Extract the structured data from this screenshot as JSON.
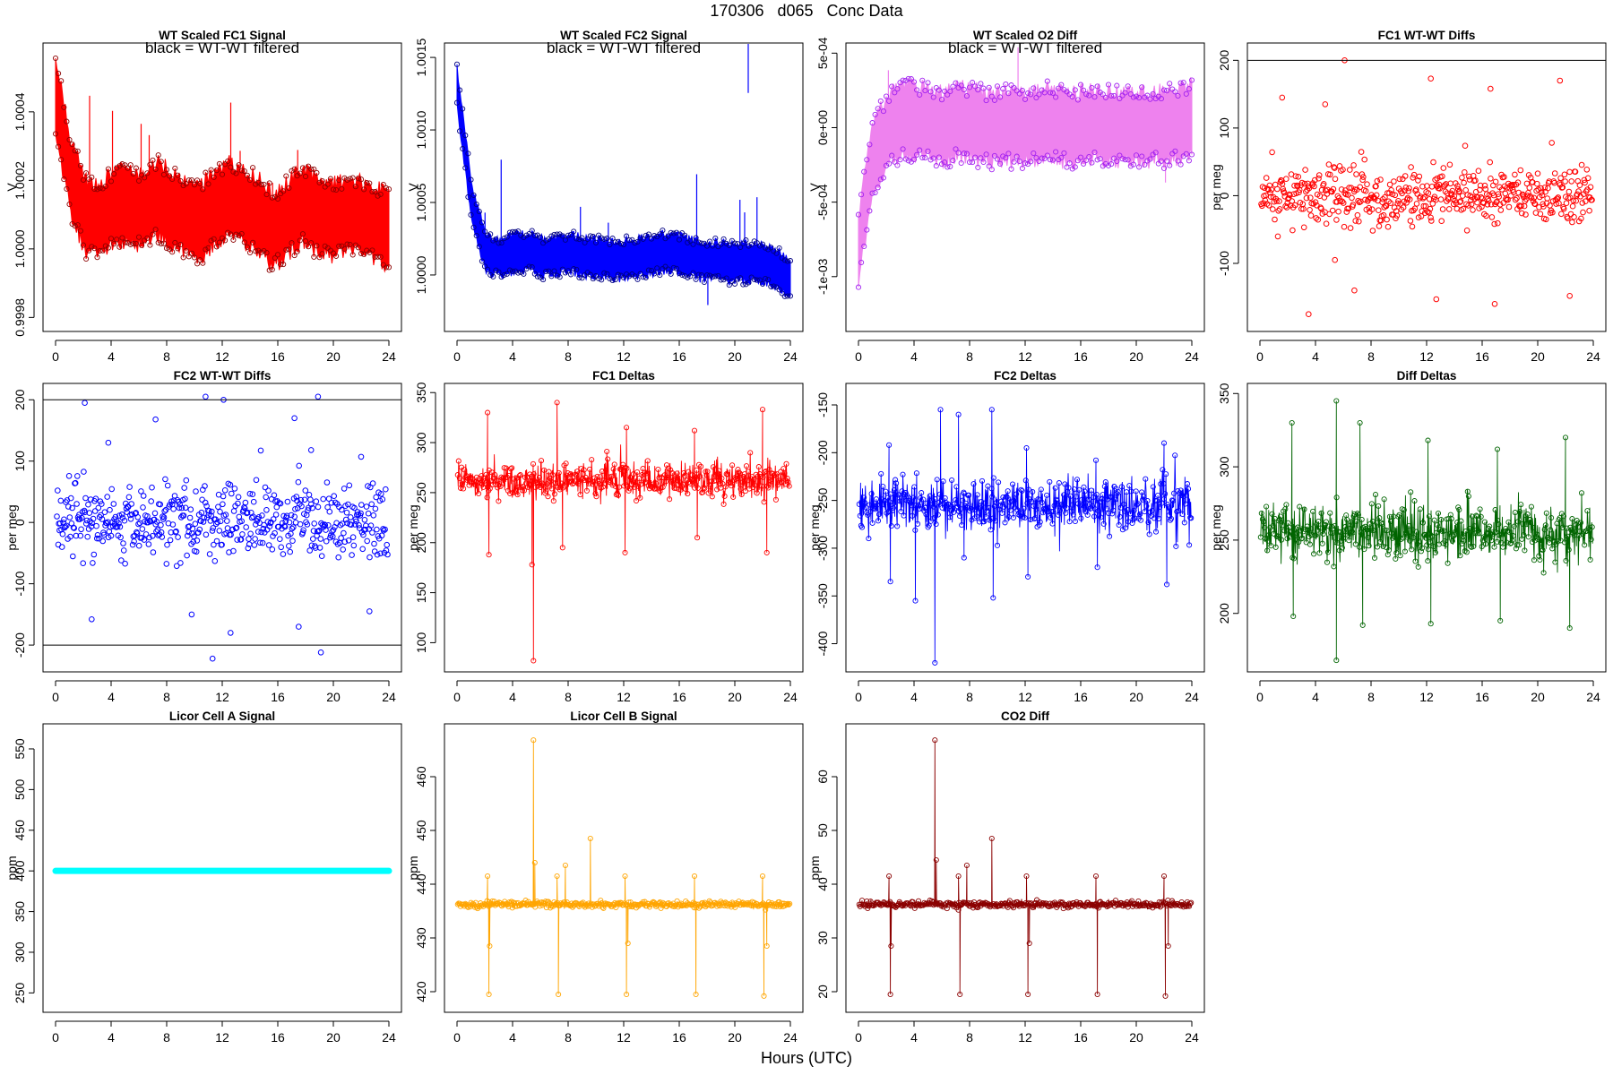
{
  "figure": {
    "title": "170306   d065   Conc Data",
    "xlabel": "Hours (UTC)"
  },
  "chart_data": [
    {
      "id": "fc1-signal",
      "type": "scatter",
      "title": "WT Scaled FC1 Signal",
      "annotation": "black = WT-WT filtered",
      "ylabel": "V",
      "xlim": [
        0,
        24
      ],
      "ylim": [
        0.99978,
        1.00058
      ],
      "xticks": [
        0,
        4,
        8,
        12,
        16,
        20,
        24
      ],
      "yticks": [
        0.9998,
        1.0,
        1.0002,
        1.0004
      ],
      "ytick_labels": [
        "0.9998",
        "1.0000",
        "1.0002",
        "1.0004"
      ],
      "color": "#ff0000",
      "style": "band",
      "marker_color": "#8b0000",
      "sample_y": [
        1.00045,
        1.00022,
        1.0001,
        1.00008,
        1.00012,
        1.00013,
        1.00011,
        1.00015,
        1.00012,
        1.0001,
        1.00008,
        1.00012,
        1.00015,
        1.00012,
        1.0001,
        1.00005,
        1.00009,
        1.00013,
        1.0001,
        1.00008,
        1.0001,
        1.00009,
        1.00008,
        1.00005
      ],
      "band_halfwidth": 0.0001
    },
    {
      "id": "fc2-signal",
      "type": "scatter",
      "title": "WT Scaled FC2 Signal",
      "annotation": "black = WT-WT filtered",
      "ylabel": "V",
      "xlim": [
        0,
        24
      ],
      "ylim": [
        0.99966,
        1.00155
      ],
      "xticks": [
        0,
        4,
        8,
        12,
        16,
        20,
        24
      ],
      "yticks": [
        1.0,
        1.0005,
        1.001,
        1.0015
      ],
      "ytick_labels": [
        "1.0000",
        "1.0005",
        "1.0010",
        "1.0015"
      ],
      "color": "#0000ff",
      "style": "band",
      "marker_color": "#000080",
      "sample_y": [
        1.0013,
        1.0005,
        1.00015,
        1.00012,
        1.00015,
        1.00016,
        1.00012,
        1.00014,
        1.00015,
        1.00012,
        1.00012,
        1.0001,
        1.00012,
        1.00013,
        1.00015,
        1.00016,
        1.00012,
        1.0001,
        1.0001,
        1.00008,
        1.00009,
        1.00008,
        1.00005,
        0.99998
      ],
      "band_halfwidth": 0.00012
    },
    {
      "id": "o2-diff",
      "type": "scatter",
      "title": "WT Scaled O2 Diff",
      "annotation": "black = WT-WT filtered",
      "ylabel": "V",
      "xlim": [
        0,
        24
      ],
      "ylim": [
        -0.00132,
        0.00052
      ],
      "xticks": [
        0,
        4,
        8,
        12,
        16,
        20,
        24
      ],
      "yticks": [
        -0.001,
        -0.0005,
        0,
        0.0005
      ],
      "ytick_labels": [
        "-1e-03",
        "-5e-04",
        "0e+00",
        "5e-04"
      ],
      "color": "#ee82ee",
      "style": "band",
      "marker_color": "#a020f0",
      "sample_y": [
        -0.0008,
        -0.0002,
        -2e-05,
        5e-05,
        4e-05,
        2e-05,
        0.0,
        5e-05,
        2e-05,
        0.0,
        1e-05,
        -1e-05,
        2e-05,
        3e-05,
        1e-05,
        0.0,
        2e-05,
        1e-05,
        0.0,
        2e-05,
        1e-05,
        1e-05,
        3e-05,
        5e-05
      ],
      "band_halfwidth": 0.00022
    },
    {
      "id": "fc1-wtwt",
      "type": "scatter",
      "title": "FC1 WT-WT Diffs",
      "ylabel": "per meg",
      "xlim": [
        0,
        24
      ],
      "ylim": [
        -190,
        215
      ],
      "xticks": [
        0,
        4,
        8,
        12,
        16,
        20,
        24
      ],
      "yticks": [
        -100,
        0,
        100,
        200
      ],
      "ytick_labels": [
        "-100",
        "0",
        "100",
        "200"
      ],
      "color": "#ff0000",
      "style": "points",
      "hlines": [
        200
      ],
      "outliers": [
        [
          1.6,
          145
        ],
        [
          3.5,
          -175
        ],
        [
          4.7,
          135
        ],
        [
          5.4,
          -95
        ],
        [
          6.1,
          200
        ],
        [
          6.8,
          -140
        ],
        [
          12.3,
          173
        ],
        [
          12.7,
          -153
        ],
        [
          16.6,
          158
        ],
        [
          16.9,
          -160
        ],
        [
          21.6,
          170
        ],
        [
          22.3,
          -148
        ]
      ],
      "noise_sd": 22,
      "n": 520,
      "bias": 0
    },
    {
      "id": "fc2-wtwt",
      "type": "scatter",
      "title": "FC2 WT-WT Diffs",
      "ylabel": "per meg",
      "xlim": [
        0,
        24
      ],
      "ylim": [
        -232,
        215
      ],
      "xticks": [
        0,
        4,
        8,
        12,
        16,
        20,
        24
      ],
      "yticks": [
        -200,
        -100,
        0,
        100,
        200
      ],
      "ytick_labels": [
        "-200",
        "-100",
        "0",
        "100",
        "200"
      ],
      "color": "#0000ff",
      "style": "points",
      "hlines": [
        200,
        -200
      ],
      "outliers": [
        [
          2.1,
          195
        ],
        [
          2.6,
          -158
        ],
        [
          3.8,
          130
        ],
        [
          7.2,
          168
        ],
        [
          9.8,
          -150
        ],
        [
          10.8,
          205
        ],
        [
          11.3,
          -222
        ],
        [
          12.1,
          200
        ],
        [
          12.6,
          -180
        ],
        [
          17.2,
          170
        ],
        [
          17.5,
          -170
        ],
        [
          18.4,
          118
        ],
        [
          18.9,
          205
        ],
        [
          19.1,
          -212
        ],
        [
          22.0,
          107
        ],
        [
          22.6,
          -145
        ]
      ],
      "noise_sd": 30,
      "n": 520,
      "bias": 0
    },
    {
      "id": "fc1-deltas",
      "type": "line",
      "title": "FC1 Deltas",
      "ylabel": "per meg",
      "xlim": [
        0,
        24
      ],
      "ylim": [
        78,
        352
      ],
      "xticks": [
        0,
        4,
        8,
        12,
        16,
        20,
        24
      ],
      "yticks": [
        100,
        150,
        200,
        250,
        300,
        350
      ],
      "ytick_labels": [
        "100",
        "150",
        "200",
        "250",
        "300",
        "350"
      ],
      "color": "#ff0000",
      "style": "series",
      "base": 262,
      "noise_sd": 9,
      "spikes": [
        [
          2.2,
          330
        ],
        [
          2.3,
          188
        ],
        [
          5.5,
          82
        ],
        [
          5.4,
          178
        ],
        [
          7.2,
          340
        ],
        [
          7.6,
          195
        ],
        [
          12.2,
          315
        ],
        [
          12.1,
          190
        ],
        [
          17.1,
          312
        ],
        [
          17.3,
          205
        ],
        [
          22.0,
          333
        ],
        [
          22.3,
          190
        ]
      ]
    },
    {
      "id": "fc2-deltas",
      "type": "line",
      "title": "FC2 Deltas",
      "ylabel": "per meg",
      "xlim": [
        0,
        24
      ],
      "ylim": [
        -422,
        -135
      ],
      "xticks": [
        0,
        4,
        8,
        12,
        16,
        20,
        24
      ],
      "yticks": [
        -400,
        -350,
        -300,
        -250,
        -200,
        -150
      ],
      "ytick_labels": [
        "-400",
        "-350",
        "-300",
        "-250",
        "-200",
        "-150"
      ],
      "color": "#0000ff",
      "style": "series",
      "base": -255,
      "noise_sd": 14,
      "spikes": [
        [
          2.2,
          -192
        ],
        [
          2.3,
          -335
        ],
        [
          4.1,
          -355
        ],
        [
          5.5,
          -420
        ],
        [
          5.9,
          -155
        ],
        [
          7.2,
          -160
        ],
        [
          7.6,
          -310
        ],
        [
          9.6,
          -155
        ],
        [
          9.7,
          -352
        ],
        [
          12.1,
          -195
        ],
        [
          12.2,
          -330
        ],
        [
          17.1,
          -208
        ],
        [
          17.2,
          -320
        ],
        [
          22.0,
          -190
        ],
        [
          22.2,
          -338
        ]
      ]
    },
    {
      "id": "diff-deltas",
      "type": "line",
      "title": "Diff Deltas",
      "ylabel": "per meg",
      "xlim": [
        0,
        24
      ],
      "ylim": [
        165,
        352
      ],
      "xticks": [
        0,
        4,
        8,
        12,
        16,
        20,
        24
      ],
      "yticks": [
        200,
        250,
        300,
        350
      ],
      "ytick_labels": [
        "200",
        "250",
        "300",
        "350"
      ],
      "color": "#006400",
      "style": "series",
      "base": 256,
      "noise_sd": 9,
      "spikes": [
        [
          2.3,
          330
        ],
        [
          2.4,
          198
        ],
        [
          5.5,
          345
        ],
        [
          5.5,
          168
        ],
        [
          7.2,
          330
        ],
        [
          7.4,
          192
        ],
        [
          12.1,
          318
        ],
        [
          12.3,
          193
        ],
        [
          17.1,
          312
        ],
        [
          17.3,
          195
        ],
        [
          22.0,
          320
        ],
        [
          22.3,
          190
        ]
      ]
    },
    {
      "id": "licor-a",
      "type": "line",
      "title": "Licor Cell A Signal",
      "ylabel": "ppm",
      "xlim": [
        0,
        24
      ],
      "ylim": [
        235,
        572
      ],
      "xticks": [
        0,
        4,
        8,
        12,
        16,
        20,
        24
      ],
      "yticks": [
        250,
        300,
        350,
        400,
        450,
        500,
        550
      ],
      "ytick_labels": [
        "250",
        "300",
        "350",
        "400",
        "450",
        "500",
        "550"
      ],
      "color": "#00ffff",
      "style": "flat",
      "value": 400
    },
    {
      "id": "licor-b",
      "type": "line",
      "title": "Licor Cell B Signal",
      "ylabel": "ppm",
      "xlim": [
        0,
        24
      ],
      "ylim": [
        417.5,
        468.5
      ],
      "xticks": [
        0,
        4,
        8,
        12,
        16,
        20,
        24
      ],
      "yticks": [
        420,
        430,
        440,
        450,
        460
      ],
      "ytick_labels": [
        "420",
        "430",
        "440",
        "450",
        "460"
      ],
      "color": "#ffa500",
      "style": "series",
      "base": 436.2,
      "noise_sd": 0.3,
      "spikes": [
        [
          2.2,
          441.5
        ],
        [
          2.3,
          419.5
        ],
        [
          2.35,
          428.5
        ],
        [
          5.5,
          466.8
        ],
        [
          5.6,
          444
        ],
        [
          7.2,
          441.5
        ],
        [
          7.3,
          419.5
        ],
        [
          7.8,
          443.5
        ],
        [
          9.6,
          448.5
        ],
        [
          12.1,
          441.5
        ],
        [
          12.2,
          419.5
        ],
        [
          12.3,
          429
        ],
        [
          17.1,
          441.5
        ],
        [
          17.2,
          419.5
        ],
        [
          22.0,
          441.5
        ],
        [
          22.1,
          419.2
        ],
        [
          22.3,
          428.5
        ]
      ]
    },
    {
      "id": "co2-diff",
      "type": "line",
      "title": "CO2 Diff",
      "ylabel": "ppm",
      "xlim": [
        0,
        24
      ],
      "ylim": [
        17.5,
        68.5
      ],
      "xticks": [
        0,
        4,
        8,
        12,
        16,
        20,
        24
      ],
      "yticks": [
        20,
        30,
        40,
        50,
        60
      ],
      "ytick_labels": [
        "20",
        "30",
        "40",
        "50",
        "60"
      ],
      "color": "#8b0000",
      "style": "series",
      "base": 36.2,
      "noise_sd": 0.3,
      "spikes": [
        [
          2.2,
          41.5
        ],
        [
          2.3,
          19.5
        ],
        [
          2.35,
          28.5
        ],
        [
          5.5,
          66.8
        ],
        [
          5.6,
          44.5
        ],
        [
          7.2,
          41.5
        ],
        [
          7.3,
          19.5
        ],
        [
          7.8,
          43.5
        ],
        [
          9.6,
          48.5
        ],
        [
          12.1,
          41.5
        ],
        [
          12.2,
          19.5
        ],
        [
          12.3,
          29
        ],
        [
          17.1,
          41.5
        ],
        [
          17.2,
          19.5
        ],
        [
          22.0,
          41.5
        ],
        [
          22.1,
          19.2
        ],
        [
          22.3,
          28.5
        ]
      ]
    }
  ]
}
